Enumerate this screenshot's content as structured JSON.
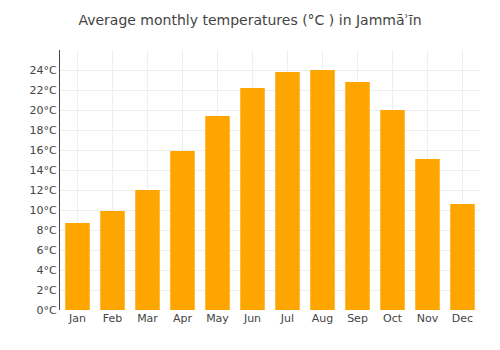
{
  "chart_data": {
    "type": "bar",
    "title": "Average monthly temperatures (°C ) in Jammāʾīn",
    "categories": [
      "Jan",
      "Feb",
      "Mar",
      "Apr",
      "May",
      "Jun",
      "Jul",
      "Aug",
      "Sep",
      "Oct",
      "Nov",
      "Dec"
    ],
    "values": [
      8.7,
      9.9,
      12.0,
      15.9,
      19.4,
      22.2,
      23.8,
      24.0,
      22.8,
      20.0,
      15.1,
      10.6
    ],
    "color": "#FFA500",
    "ylim": [
      0,
      26.0
    ],
    "yticks": [
      {
        "value": 0,
        "label": "0°C"
      },
      {
        "value": 2,
        "label": "2°C"
      },
      {
        "value": 4,
        "label": "4°C"
      },
      {
        "value": 6,
        "label": "6°C"
      },
      {
        "value": 8,
        "label": "8°C"
      },
      {
        "value": 10,
        "label": "10°C"
      },
      {
        "value": 12,
        "label": "12°C"
      },
      {
        "value": 14,
        "label": "14°C"
      },
      {
        "value": 16,
        "label": "16°C"
      },
      {
        "value": 18,
        "label": "18°C"
      },
      {
        "value": 20,
        "label": "20°C"
      },
      {
        "value": 22,
        "label": "22°C"
      },
      {
        "value": 24,
        "label": "24°C"
      }
    ],
    "grid": true
  }
}
